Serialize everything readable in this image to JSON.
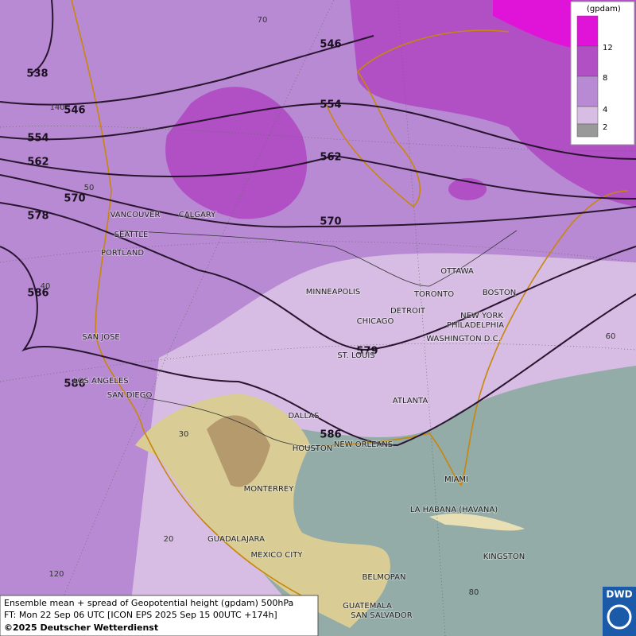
{
  "legend": {
    "unit": "(gpdam)",
    "ticks": [
      "12",
      "8",
      "4",
      "2"
    ]
  },
  "contour_labels": [
    "538",
    "546",
    "546",
    "554",
    "554",
    "562",
    "562",
    "570",
    "570",
    "578",
    "579",
    "586",
    "586",
    "586"
  ],
  "cities": [
    "VANCOUVER",
    "CALGARY",
    "SEATTLE",
    "PORTLAND",
    "MINNEAPOLIS",
    "OTTAWA",
    "TORONTO",
    "BOSTON",
    "DETROIT",
    "CHICAGO",
    "NEW YORK",
    "PHILADELPHIA",
    "WASHINGTON D.C.",
    "ST. LOUIS",
    "SAN JOSE",
    "LOS ANGELES",
    "SAN DIEGO",
    "DALLAS",
    "ATLANTA",
    "HOUSTON",
    "NEW ORLEANS",
    "MIAMI",
    "MONTERREY",
    "LA HABANA (HAVANA)",
    "GUADALAJARA",
    "MEXICO CITY",
    "KINGSTON",
    "BELMOPAN",
    "GUATEMALA",
    "SAN SALVADOR"
  ],
  "graticule_labels": [
    "70",
    "140",
    "50",
    "40",
    "30",
    "20",
    "120",
    "60",
    "80"
  ],
  "footer": {
    "line1": "Ensemble mean + spread of Geopotential height (gpdam) 500hPa",
    "line2": "FT: Mon 22 Sep 06 UTC [ICON EPS 2025 Sep 15 00UTC +174h]",
    "line3": "©2025 Deutscher Wetterdienst"
  },
  "logo": "DWD"
}
